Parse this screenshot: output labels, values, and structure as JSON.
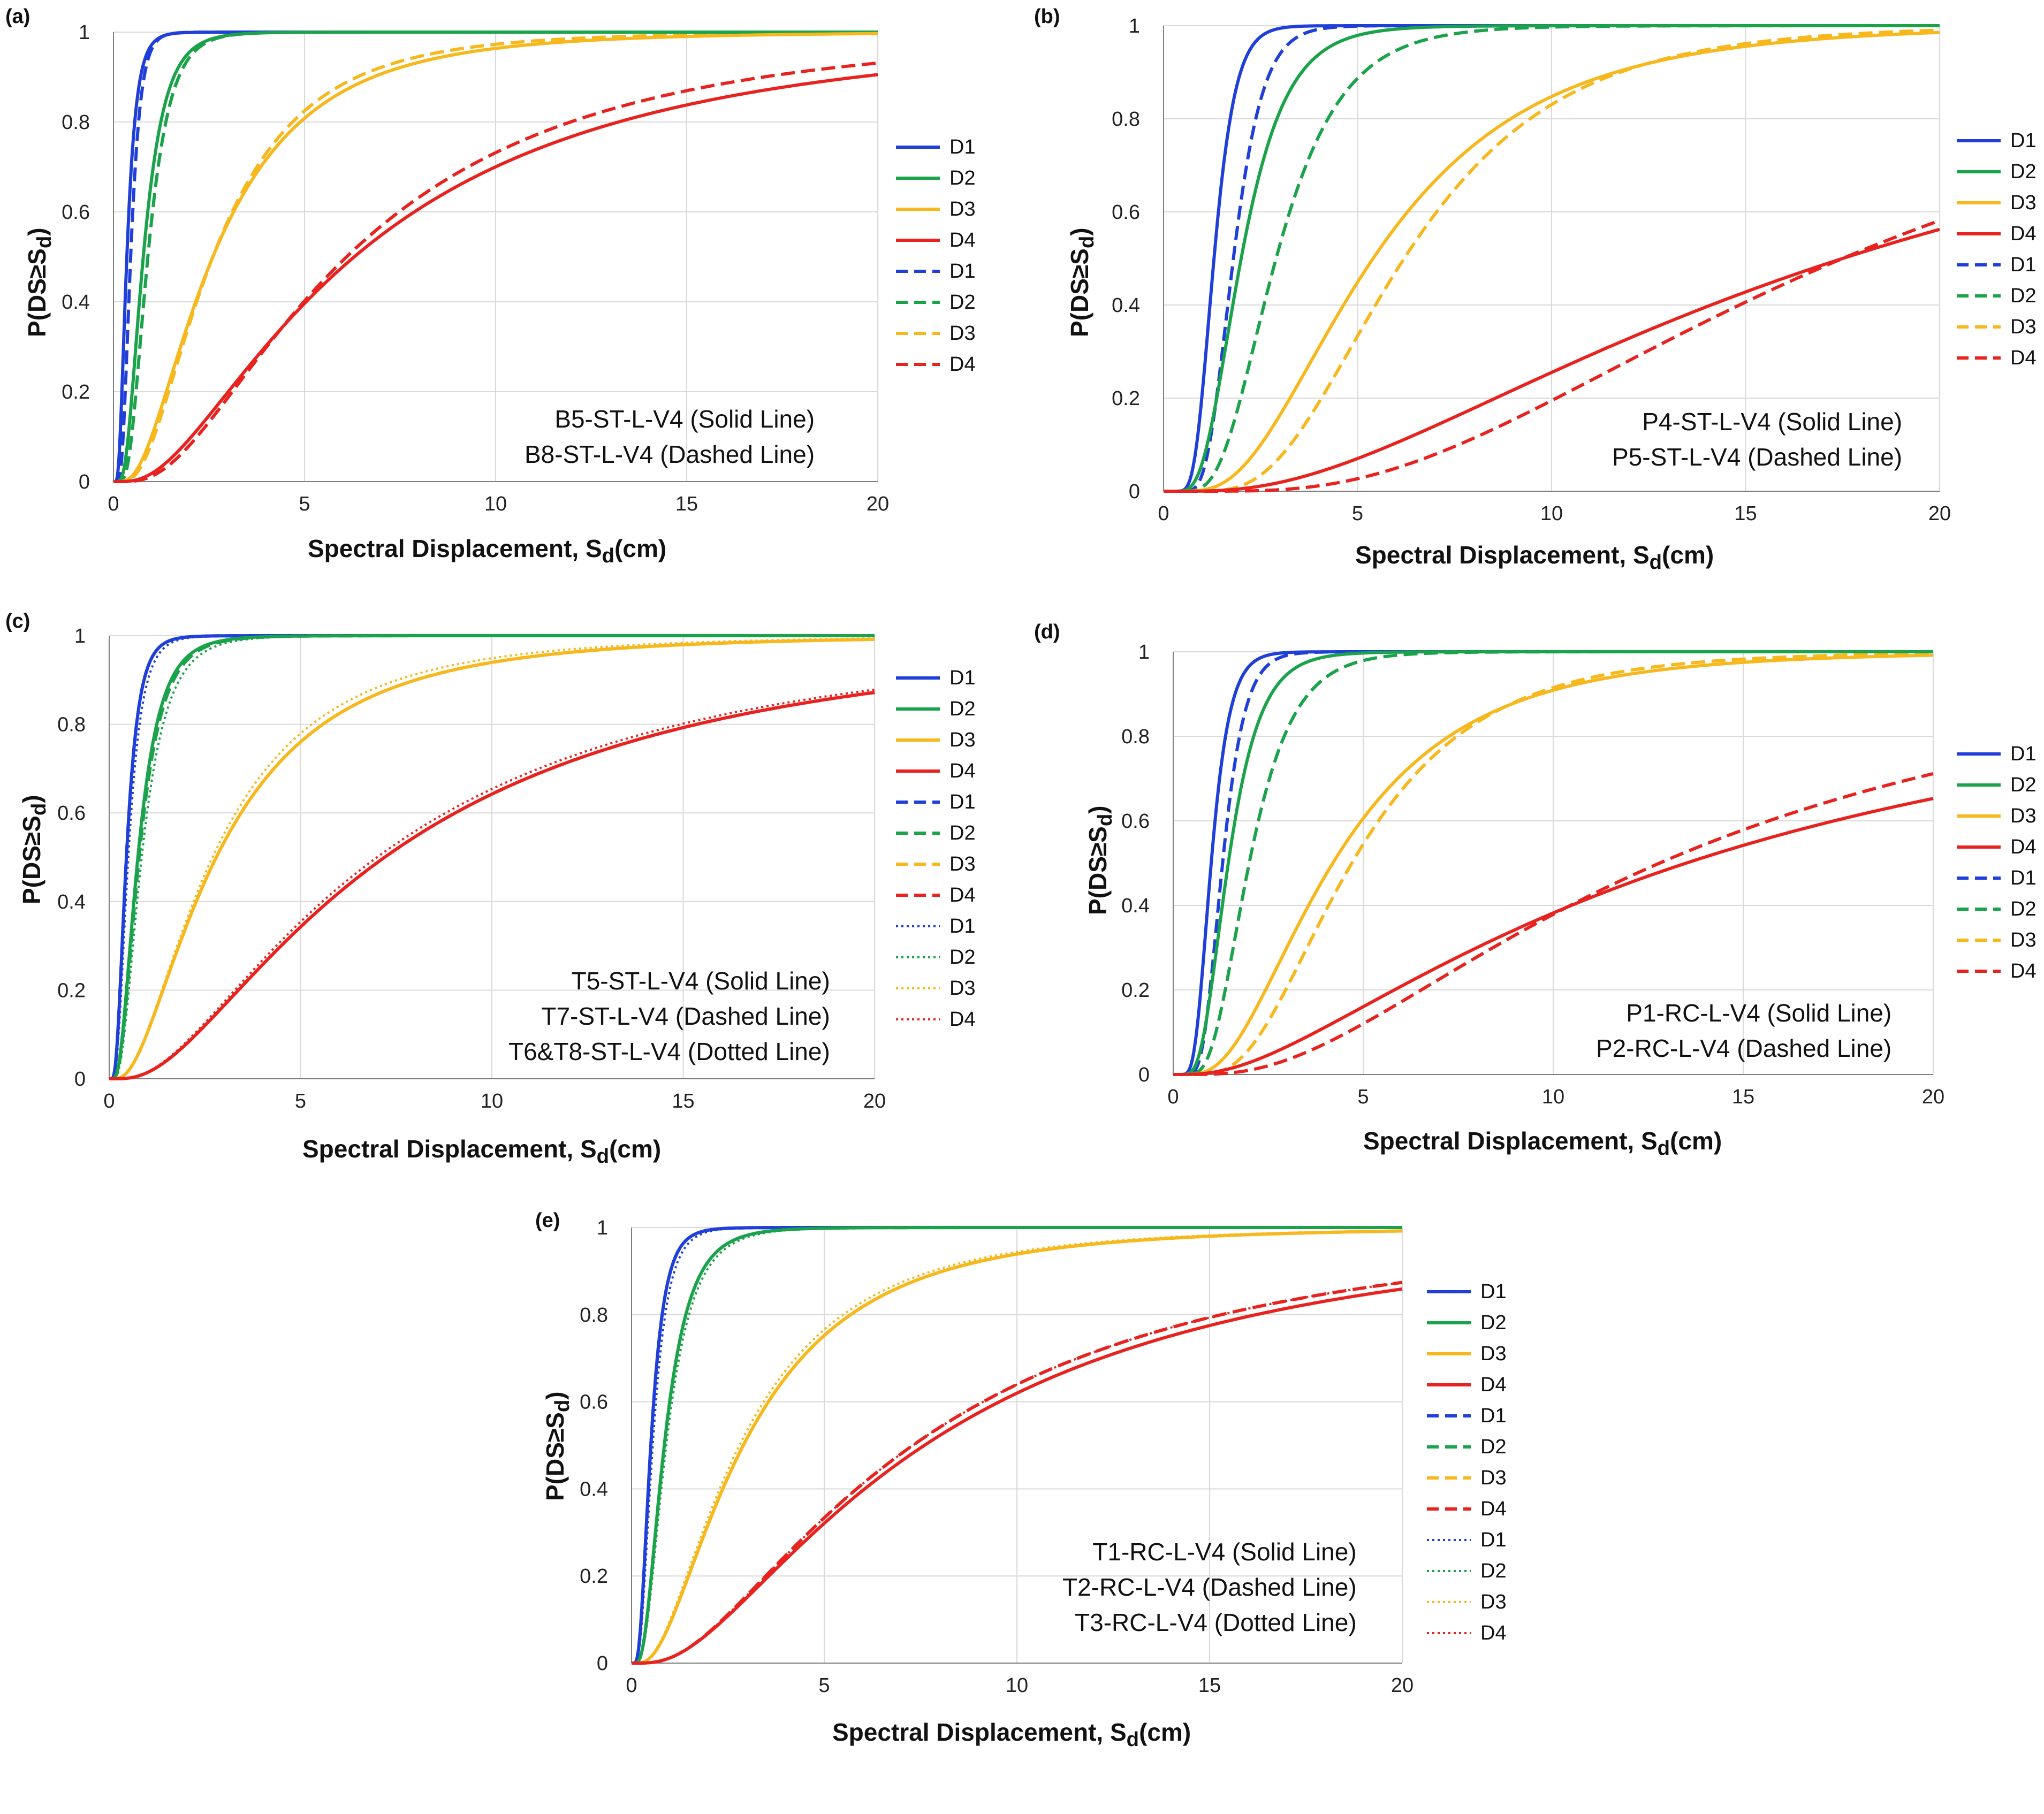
{
  "chart_data": [
    {
      "id": "a",
      "type": "line",
      "panel_label": "(a)",
      "xlabel_main": "Spectral Displacement, S",
      "xlabel_sub": "d",
      "xlabel_tail": "(cm)",
      "ylabel_main": "P(DS≥S",
      "ylabel_sub": "d",
      "ylabel_tail": ")",
      "xlim": [
        0,
        20
      ],
      "ylim": [
        0,
        1
      ],
      "xticks": [
        "0",
        "5",
        "10",
        "15",
        "20"
      ],
      "yticks": [
        "0",
        "0.2",
        "0.4",
        "0.6",
        "0.8",
        "1"
      ],
      "annotation": [
        "B5-ST-L-V4 (Solid Line)",
        "B8-ST-L-V4 (Dashed Line)"
      ],
      "series": [
        {
          "name": "D1",
          "style": "solid",
          "color": "#1f3fd8",
          "median": 0.35,
          "beta": 0.55
        },
        {
          "name": "D2",
          "style": "solid",
          "color": "#1aa34a",
          "median": 0.78,
          "beta": 0.55
        },
        {
          "name": "D3",
          "style": "solid",
          "color": "#f6b81c",
          "median": 2.6,
          "beta": 0.75
        },
        {
          "name": "D4",
          "style": "solid",
          "color": "#e8231f",
          "median": 6.3,
          "beta": 0.88
        },
        {
          "name": "D1",
          "style": "dashed",
          "color": "#1f3fd8",
          "median": 0.45,
          "beta": 0.45
        },
        {
          "name": "D2",
          "style": "dashed",
          "color": "#1aa34a",
          "median": 0.9,
          "beta": 0.5
        },
        {
          "name": "D3",
          "style": "dashed",
          "color": "#f6b81c",
          "median": 2.6,
          "beta": 0.7
        },
        {
          "name": "D4",
          "style": "dashed",
          "color": "#e8231f",
          "median": 6.1,
          "beta": 0.8
        }
      ]
    },
    {
      "id": "b",
      "type": "line",
      "panel_label": "(b)",
      "xlabel_main": "Spectral Displacement, S",
      "xlabel_sub": "d",
      "xlabel_tail": "(cm)",
      "ylabel_main": "P(DS≥S",
      "ylabel_sub": "d",
      "ylabel_tail": ")",
      "xlim": [
        0,
        20
      ],
      "ylim": [
        0,
        1
      ],
      "xticks": [
        "0",
        "5",
        "10",
        "15",
        "20"
      ],
      "yticks": [
        "0",
        "0.2",
        "0.4",
        "0.6",
        "0.8",
        "1"
      ],
      "annotation": [
        "P4-ST-L-V4 (Solid Line)",
        "P5-ST-L-V4 (Dashed Line)"
      ],
      "series": [
        {
          "name": "D1",
          "style": "solid",
          "color": "#1f3fd8",
          "median": 1.3,
          "beta": 0.33
        },
        {
          "name": "D2",
          "style": "solid",
          "color": "#1aa34a",
          "median": 2.0,
          "beta": 0.45
        },
        {
          "name": "D3",
          "style": "solid",
          "color": "#f6b81c",
          "median": 5.4,
          "beta": 0.6
        },
        {
          "name": "D4",
          "style": "solid",
          "color": "#e8231f",
          "median": 17.5,
          "beta": 0.85
        },
        {
          "name": "D1",
          "style": "dashed",
          "color": "#1f3fd8",
          "median": 1.8,
          "beta": 0.33
        },
        {
          "name": "D2",
          "style": "dashed",
          "color": "#1aa34a",
          "median": 2.9,
          "beta": 0.45
        },
        {
          "name": "D3",
          "style": "dashed",
          "color": "#f6b81c",
          "median": 6.2,
          "beta": 0.5
        },
        {
          "name": "D4",
          "style": "dashed",
          "color": "#e8231f",
          "median": 17.5,
          "beta": 0.65
        }
      ]
    },
    {
      "id": "c",
      "type": "line",
      "panel_label": "(c)",
      "xlabel_main": "Spectral Displacement, S",
      "xlabel_sub": "d",
      "xlabel_tail": "(cm)",
      "ylabel_main": "P(DS≥S",
      "ylabel_sub": "d",
      "ylabel_tail": ")",
      "xlim": [
        0,
        20
      ],
      "ylim": [
        0,
        1
      ],
      "xticks": [
        "0",
        "5",
        "10",
        "15",
        "20"
      ],
      "yticks": [
        "0",
        "0.2",
        "0.4",
        "0.6",
        "0.8",
        "1"
      ],
      "annotation": [
        "T5-ST-L-V4 (Solid Line)",
        "T7-ST-L-V4 (Dashed Line)",
        "T6&T8-ST-L-V4 (Dotted Line)"
      ],
      "series": [
        {
          "name": "D1",
          "style": "solid",
          "color": "#1f3fd8",
          "median": 0.45,
          "beta": 0.55
        },
        {
          "name": "D2",
          "style": "solid",
          "color": "#1aa34a",
          "median": 0.75,
          "beta": 0.6
        },
        {
          "name": "D3",
          "style": "solid",
          "color": "#f6b81c",
          "median": 2.8,
          "beta": 0.82
        },
        {
          "name": "D4",
          "style": "solid",
          "color": "#e8231f",
          "median": 7.2,
          "beta": 0.9
        },
        {
          "name": "D1",
          "style": "dashed",
          "color": "#1f3fd8",
          "median": 0.45,
          "beta": 0.55
        },
        {
          "name": "D2",
          "style": "dashed",
          "color": "#1aa34a",
          "median": 0.78,
          "beta": 0.6
        },
        {
          "name": "D3",
          "style": "dashed",
          "color": "#f6b81c",
          "median": 2.8,
          "beta": 0.82
        },
        {
          "name": "D4",
          "style": "dashed",
          "color": "#e8231f",
          "median": 7.2,
          "beta": 0.9
        },
        {
          "name": "D1",
          "style": "dotted",
          "color": "#1f3fd8",
          "median": 0.5,
          "beta": 0.55
        },
        {
          "name": "D2",
          "style": "dotted",
          "color": "#1aa34a",
          "median": 0.85,
          "beta": 0.6
        },
        {
          "name": "D3",
          "style": "dotted",
          "color": "#f6b81c",
          "median": 2.7,
          "beta": 0.8
        },
        {
          "name": "D4",
          "style": "dotted",
          "color": "#e8231f",
          "median": 7.0,
          "beta": 0.9
        }
      ]
    },
    {
      "id": "d",
      "type": "line",
      "panel_label": "(d)",
      "xlabel_main": "Spectral Displacement, S",
      "xlabel_sub": "d",
      "xlabel_tail": "(cm)",
      "ylabel_main": "P(DS≥S",
      "ylabel_sub": "d",
      "ylabel_tail": ")",
      "xlim": [
        0,
        20
      ],
      "ylim": [
        0,
        1
      ],
      "xticks": [
        "0",
        "5",
        "10",
        "15",
        "20"
      ],
      "yticks": [
        "0",
        "0.2",
        "0.4",
        "0.6",
        "0.8",
        "1"
      ],
      "annotation": [
        "P1-RC-L-V4 (Solid Line)",
        "P2-RC-L-V4 (Dashed Line)"
      ],
      "series": [
        {
          "name": "D1",
          "style": "solid",
          "color": "#1f3fd8",
          "median": 1.0,
          "beta": 0.38
        },
        {
          "name": "D2",
          "style": "solid",
          "color": "#1aa34a",
          "median": 1.45,
          "beta": 0.45
        },
        {
          "name": "D3",
          "style": "solid",
          "color": "#f6b81c",
          "median": 4.2,
          "beta": 0.65
        },
        {
          "name": "D4",
          "style": "solid",
          "color": "#e8231f",
          "median": 13.5,
          "beta": 1.0
        },
        {
          "name": "D1",
          "style": "dashed",
          "color": "#1f3fd8",
          "median": 1.3,
          "beta": 0.35
        },
        {
          "name": "D2",
          "style": "dashed",
          "color": "#1aa34a",
          "median": 2.0,
          "beta": 0.45
        },
        {
          "name": "D3",
          "style": "dashed",
          "color": "#f6b81c",
          "median": 4.7,
          "beta": 0.55
        },
        {
          "name": "D4",
          "style": "dashed",
          "color": "#e8231f",
          "median": 12.8,
          "beta": 0.8
        }
      ]
    },
    {
      "id": "e",
      "type": "line",
      "panel_label": "(e)",
      "xlabel_main": "Spectral Displacement, S",
      "xlabel_sub": "d",
      "xlabel_tail": "(cm)",
      "ylabel_main": "P(DS≥S",
      "ylabel_sub": "d",
      "ylabel_tail": ")",
      "xlim": [
        0,
        20
      ],
      "ylim": [
        0,
        1
      ],
      "xticks": [
        "0",
        "5",
        "10",
        "15",
        "20"
      ],
      "yticks": [
        "0",
        "0.2",
        "0.4",
        "0.6",
        "0.8",
        "1"
      ],
      "annotation": [
        "T1-RC-L-V4 (Solid Line)",
        "T2-RC-L-V4 (Dashed Line)",
        "T3-RC-L-V4 (Dotted Line)"
      ],
      "series": [
        {
          "name": "D1",
          "style": "solid",
          "color": "#1f3fd8",
          "median": 0.5,
          "beta": 0.55
        },
        {
          "name": "D2",
          "style": "solid",
          "color": "#1aa34a",
          "median": 0.85,
          "beta": 0.6
        },
        {
          "name": "D3",
          "style": "solid",
          "color": "#f6b81c",
          "median": 2.9,
          "beta": 0.8
        },
        {
          "name": "D4",
          "style": "solid",
          "color": "#e8231f",
          "median": 7.6,
          "beta": 0.9
        },
        {
          "name": "D1",
          "style": "dashed",
          "color": "#1f3fd8",
          "median": 0.5,
          "beta": 0.55
        },
        {
          "name": "D2",
          "style": "dashed",
          "color": "#1aa34a",
          "median": 0.85,
          "beta": 0.6
        },
        {
          "name": "D3",
          "style": "dashed",
          "color": "#f6b81c",
          "median": 2.9,
          "beta": 0.8
        },
        {
          "name": "D4",
          "style": "dashed",
          "color": "#e8231f",
          "median": 7.3,
          "beta": 0.88
        },
        {
          "name": "D1",
          "style": "dotted",
          "color": "#1f3fd8",
          "median": 0.55,
          "beta": 0.55
        },
        {
          "name": "D2",
          "style": "dotted",
          "color": "#1aa34a",
          "median": 0.9,
          "beta": 0.6
        },
        {
          "name": "D3",
          "style": "dotted",
          "color": "#f6b81c",
          "median": 2.8,
          "beta": 0.8
        },
        {
          "name": "D4",
          "style": "dotted",
          "color": "#e8231f",
          "median": 7.3,
          "beta": 0.88
        }
      ]
    }
  ]
}
